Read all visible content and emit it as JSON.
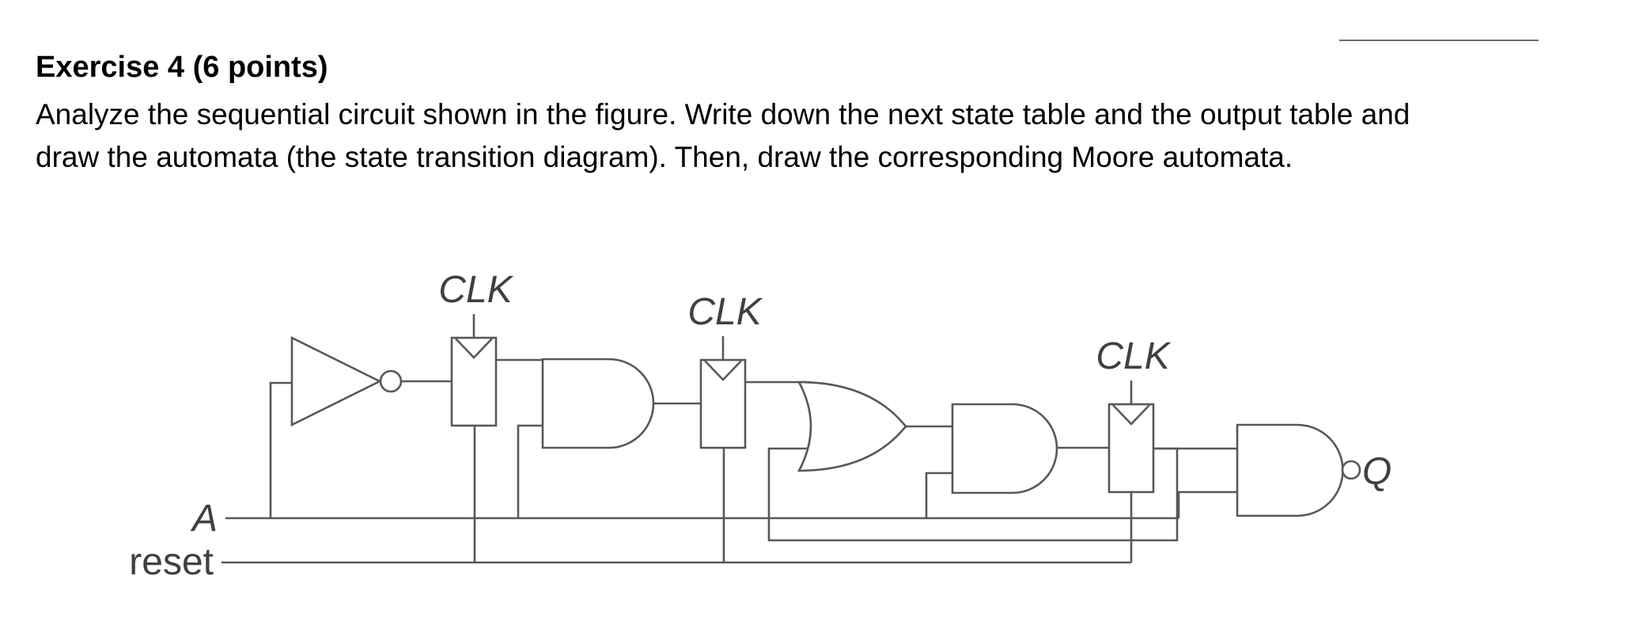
{
  "exercise": {
    "title": "Exercise 4 (6 points)",
    "body_lines": [
      "Analyze the sequential circuit shown in the figure. Write down the next state table and the output table and",
      "draw the automata (the state transition diagram). Then, draw the corresponding Moore automata."
    ]
  },
  "circuit": {
    "clock_labels": [
      "CLK",
      "CLK",
      "CLK"
    ],
    "input_labels": {
      "a": "A",
      "reset": "reset"
    },
    "output_label": "Q"
  }
}
